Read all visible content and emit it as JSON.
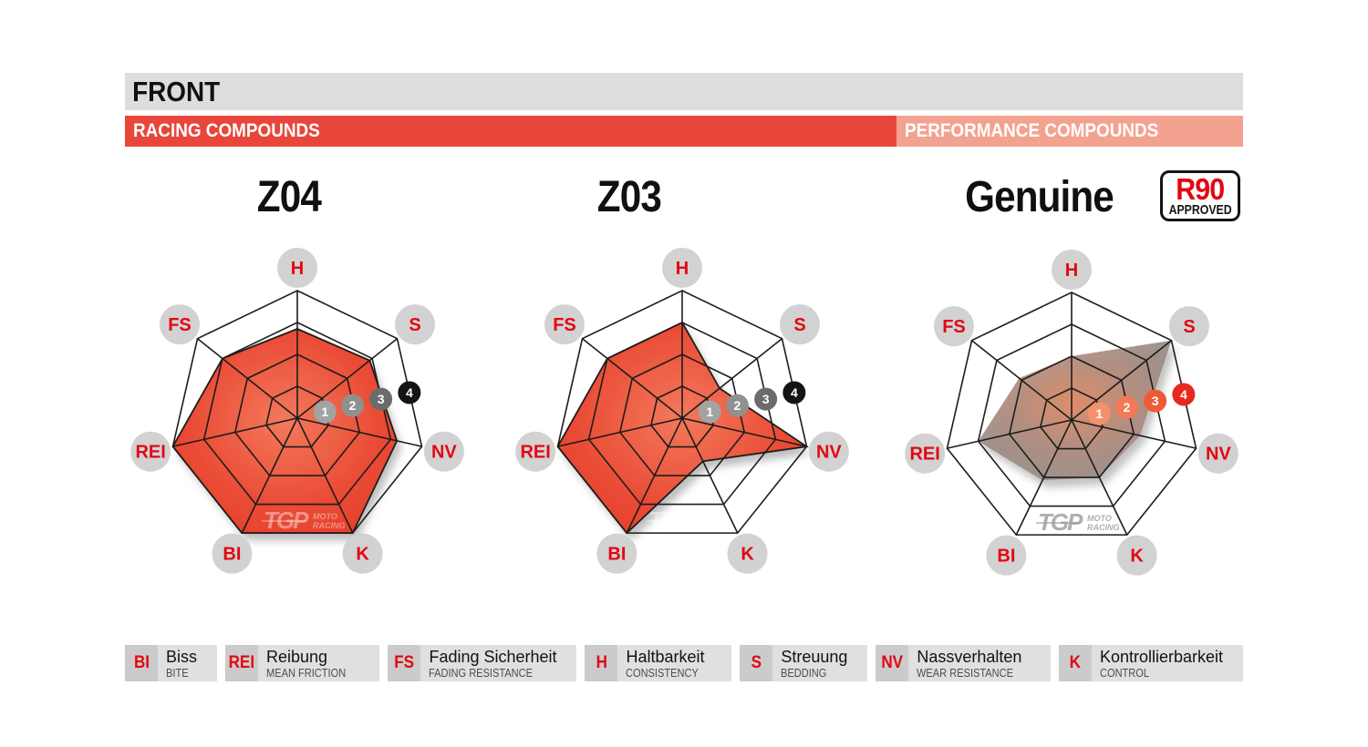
{
  "header": {
    "title": "FRONT"
  },
  "category_bars": [
    {
      "label": "RACING COMPOUNDS"
    },
    {
      "label": "PERFORMANCE COMPOUNDS"
    }
  ],
  "watermark": {
    "brand": "TGP",
    "line1": "MOTO",
    "line2": "RACING"
  },
  "chart_data": [
    {
      "type": "radar",
      "title": "Z04",
      "compound_group": "RACING COMPOUNDS",
      "style": "racing",
      "axes": [
        "H",
        "S",
        "NV",
        "K",
        "BI",
        "REI",
        "FS"
      ],
      "values": [
        2.8,
        2.9,
        3.2,
        4.0,
        4.0,
        4.0,
        3.0
      ],
      "scale": {
        "min": 0,
        "max": 4,
        "ticks": [
          1,
          2,
          3,
          4
        ]
      },
      "legend_position": "none",
      "grid": "spiderweb-4-rings-7-spokes"
    },
    {
      "type": "radar",
      "title": "Z03",
      "compound_group": "RACING COMPOUNDS",
      "style": "racing",
      "axes": [
        "H",
        "S",
        "NV",
        "K",
        "BI",
        "REI",
        "FS"
      ],
      "values": [
        3.0,
        1.5,
        4.0,
        1.5,
        4.0,
        4.0,
        3.0
      ],
      "scale": {
        "min": 0,
        "max": 4,
        "ticks": [
          1,
          2,
          3,
          4
        ]
      },
      "legend_position": "none",
      "grid": "spiderweb-4-rings-7-spokes"
    },
    {
      "type": "radar",
      "title": "Genuine",
      "badge": {
        "top": "R90",
        "bottom": "APPROVED"
      },
      "compound_group": "PERFORMANCE COMPOUNDS",
      "style": "performance",
      "axes": [
        "H",
        "S",
        "NV",
        "K",
        "BI",
        "REI",
        "FS"
      ],
      "values": [
        2.0,
        4.0,
        2.2,
        2.0,
        2.1,
        3.0,
        2.1
      ],
      "scale": {
        "min": 0,
        "max": 4,
        "ticks": [
          1,
          2,
          3,
          4
        ]
      },
      "legend_position": "none",
      "grid": "spiderweb-4-rings-7-spokes"
    }
  ],
  "legend": {
    "items": [
      {
        "abbr": "BI",
        "de": "Biss",
        "en": "BITE"
      },
      {
        "abbr": "REI",
        "de": "Reibung",
        "en": "MEAN FRICTION"
      },
      {
        "abbr": "FS",
        "de": "Fading Sicherheit",
        "en": "FADING RESISTANCE"
      },
      {
        "abbr": "H",
        "de": "Haltbarkeit",
        "en": "CONSISTENCY"
      },
      {
        "abbr": "S",
        "de": "Streuung",
        "en": "BEDDING"
      },
      {
        "abbr": "NV",
        "de": "Nassverhalten",
        "en": "WEAR RESISTANCE"
      },
      {
        "abbr": "K",
        "de": "Kontrollierbarkeit",
        "en": "CONTROL"
      }
    ]
  },
  "colors": {
    "header_bar": "#dcdddd",
    "racing_bar": "#e8463a",
    "performance_bar": "#f3a28f",
    "accent_red": "#e30613",
    "grid_line": "#1d1d1b",
    "label_circle": "#d2d2d2",
    "racing_fill_center": "#f3795c",
    "racing_fill_edge": "#e63a27",
    "genuine_fill_center": "#df8a62",
    "genuine_fill_mid": "#b18b7c",
    "genuine_fill_edge": "#8e8e8e",
    "tick_colors_racing": [
      "#a3a3a3",
      "#909090",
      "#6b6b6b",
      "#141414"
    ],
    "tick_colors_performance": [
      "#f4906e",
      "#f27a55",
      "#ee5a36",
      "#e6281e"
    ]
  }
}
